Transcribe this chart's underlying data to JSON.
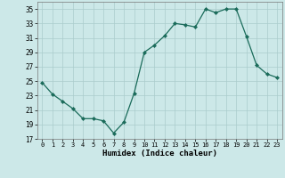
{
  "x": [
    0,
    1,
    2,
    3,
    4,
    5,
    6,
    7,
    8,
    9,
    10,
    11,
    12,
    13,
    14,
    15,
    16,
    17,
    18,
    19,
    20,
    21,
    22,
    23
  ],
  "y": [
    24.8,
    23.2,
    22.2,
    21.2,
    19.8,
    19.8,
    19.5,
    17.8,
    19.3,
    23.3,
    29.0,
    30.0,
    31.3,
    33.0,
    32.8,
    32.5,
    35.0,
    34.5,
    35.0,
    35.0,
    31.2,
    27.2,
    26.0,
    25.5
  ],
  "xlabel": "Humidex (Indice chaleur)",
  "xlim": [
    -0.5,
    23.5
  ],
  "ylim": [
    17,
    36
  ],
  "yticks": [
    17,
    19,
    21,
    23,
    25,
    27,
    29,
    31,
    33,
    35
  ],
  "xticks": [
    0,
    1,
    2,
    3,
    4,
    5,
    6,
    7,
    8,
    9,
    10,
    11,
    12,
    13,
    14,
    15,
    16,
    17,
    18,
    19,
    20,
    21,
    22,
    23
  ],
  "line_color": "#1a6b5a",
  "marker": "D",
  "marker_size": 2.0,
  "bg_color": "#cce8e8",
  "grid_color": "#aacccc",
  "fig_bg": "#cce8e8"
}
